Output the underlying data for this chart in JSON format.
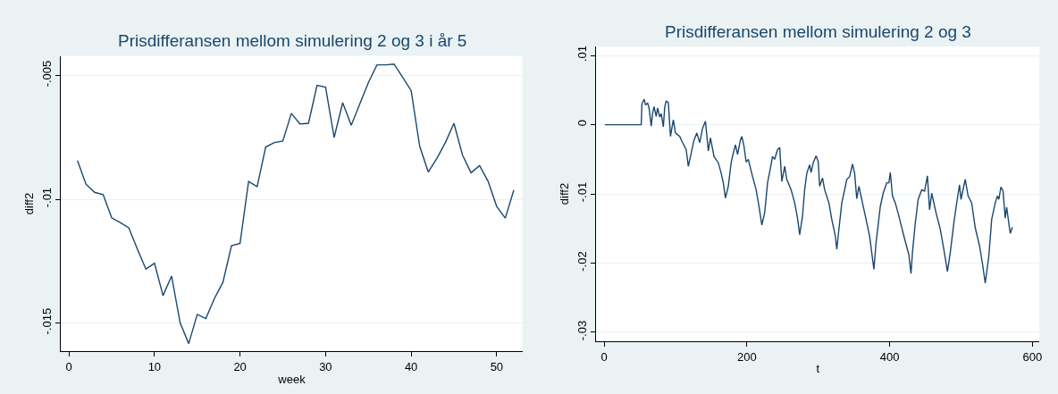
{
  "chart_data": [
    {
      "type": "line",
      "title": "Prisdifferansen mellom simulering 2 og 3 i år 5",
      "xlabel": "week",
      "ylabel": "diff2",
      "color": "#1a476f",
      "marker": "none",
      "grid": "y",
      "x": [
        1,
        2,
        3,
        4,
        5,
        6,
        7,
        8,
        9,
        10,
        11,
        12,
        13,
        14,
        15,
        16,
        17,
        18,
        19,
        20,
        21,
        22,
        23,
        24,
        25,
        26,
        27,
        28,
        29,
        30,
        31,
        32,
        33,
        34,
        35,
        36,
        37,
        38,
        39,
        40,
        41,
        42,
        43,
        44,
        45,
        46,
        47,
        48,
        49,
        50,
        51,
        52
      ],
      "values": [
        -0.00844,
        -0.00939,
        -0.00972,
        -0.00981,
        -0.01075,
        -0.01094,
        -0.01115,
        -0.01201,
        -0.01282,
        -0.01258,
        -0.01389,
        -0.0131,
        -0.01499,
        -0.01583,
        -0.01465,
        -0.01482,
        -0.01401,
        -0.01335,
        -0.01188,
        -0.01178,
        -0.00928,
        -0.00949,
        -0.00789,
        -0.00771,
        -0.00765,
        -0.00653,
        -0.00696,
        -0.00693,
        -0.0054,
        -0.00547,
        -0.0075,
        -0.0061,
        -0.00701,
        -0.00615,
        -0.00529,
        -0.00457,
        -0.00457,
        -0.00454,
        -0.00507,
        -0.00561,
        -0.00786,
        -0.0089,
        -0.00835,
        -0.00771,
        -0.00693,
        -0.00821,
        -0.00893,
        -0.00864,
        -0.00928,
        -0.01029,
        -0.01076,
        -0.00963
      ],
      "xlim": [
        -0.9,
        53
      ],
      "ylim": [
        -0.01615,
        -0.00421
      ],
      "xticks": [
        0,
        10,
        20,
        30,
        40,
        50
      ],
      "yticks": [
        {
          "value": -0.015,
          "label": "-.015"
        },
        {
          "value": -0.01,
          "label": "-.01"
        },
        {
          "value": -0.005,
          "label": "-.005"
        }
      ]
    },
    {
      "type": "line",
      "title": "Prisdifferansen mellom simulering 2 og 3",
      "xlabel": "t",
      "ylabel": "diff2",
      "color": "#1a476f",
      "marker": "none",
      "grid": "y",
      "x": [
        1,
        52,
        53,
        56,
        58,
        61,
        63,
        66,
        68,
        70,
        73,
        75,
        78,
        80,
        83,
        85,
        87,
        90,
        93,
        97,
        100,
        106,
        110,
        115,
        118,
        121,
        126,
        130,
        134,
        138,
        142,
        146,
        149,
        154,
        160,
        164,
        167,
        170,
        174,
        178,
        181,
        184,
        187,
        191,
        193,
        196,
        199,
        202,
        208,
        213,
        217,
        221,
        225,
        229,
        233,
        236,
        239,
        243,
        246,
        249,
        253,
        256,
        262,
        267,
        271,
        274,
        278,
        281,
        284,
        288,
        290,
        293,
        297,
        300,
        302,
        306,
        309,
        315,
        319,
        324,
        326,
        329,
        333,
        337,
        340,
        344,
        348,
        351,
        354,
        357,
        362,
        366,
        372,
        375,
        378,
        381,
        387,
        391,
        396,
        399,
        401,
        404,
        408,
        413,
        420,
        427,
        430,
        432,
        436,
        440,
        445,
        449,
        453,
        456,
        459,
        465,
        471,
        476,
        481,
        485,
        490,
        494,
        498,
        500,
        506,
        510,
        515,
        520,
        526,
        530,
        534,
        539,
        543,
        548,
        551,
        553,
        556,
        559,
        562,
        564,
        567,
        569,
        572
      ],
      "values": [
        0,
        0,
        0.003,
        0.0037,
        0.0029,
        0.0031,
        0.0024,
        -0.0002,
        0.0017,
        0.0026,
        0.0012,
        0.0024,
        0.0011,
        0.0016,
        -0.0003,
        0.0026,
        0.0034,
        0.0032,
        -0.0017,
        0.0007,
        -0.0012,
        -0.0017,
        -0.0026,
        -0.0036,
        -0.006,
        -0.0046,
        -0.0022,
        -0.0012,
        -0.0026,
        -0.0005,
        0.0005,
        -0.0038,
        -0.0019,
        -0.0046,
        -0.0055,
        -0.007,
        -0.0084,
        -0.0106,
        -0.0089,
        -0.0055,
        -0.0041,
        -0.0029,
        -0.0043,
        -0.0022,
        -0.0017,
        -0.0031,
        -0.0054,
        -0.005,
        -0.0075,
        -0.0094,
        -0.0118,
        -0.0145,
        -0.0127,
        -0.0084,
        -0.0063,
        -0.0046,
        -0.005,
        -0.0036,
        -0.0033,
        -0.0082,
        -0.006,
        -0.0079,
        -0.0094,
        -0.0113,
        -0.0135,
        -0.0159,
        -0.0132,
        -0.0094,
        -0.007,
        -0.0058,
        -0.0069,
        -0.0055,
        -0.0045,
        -0.0053,
        -0.0089,
        -0.0077,
        -0.0094,
        -0.0113,
        -0.0137,
        -0.0161,
        -0.018,
        -0.0151,
        -0.0113,
        -0.0094,
        -0.0079,
        -0.0075,
        -0.0057,
        -0.007,
        -0.0107,
        -0.0089,
        -0.0113,
        -0.0132,
        -0.0161,
        -0.0185,
        -0.0209,
        -0.0171,
        -0.0118,
        -0.0099,
        -0.0084,
        -0.0084,
        -0.0069,
        -0.0103,
        -0.0113,
        -0.0132,
        -0.0161,
        -0.0188,
        -0.0215,
        -0.0185,
        -0.0142,
        -0.0108,
        -0.0094,
        -0.0096,
        -0.0074,
        -0.0123,
        -0.0099,
        -0.0127,
        -0.0151,
        -0.018,
        -0.0212,
        -0.0185,
        -0.0142,
        -0.0113,
        -0.0087,
        -0.0108,
        -0.0079,
        -0.0103,
        -0.0113,
        -0.0149,
        -0.0175,
        -0.02,
        -0.0229,
        -0.019,
        -0.0137,
        -0.0113,
        -0.0103,
        -0.0108,
        -0.009,
        -0.0096,
        -0.0135,
        -0.0119,
        -0.0142,
        -0.0157,
        -0.0148
      ],
      "xlim": [
        -11,
        610
      ],
      "ylim": [
        -0.0313,
        0.0113
      ],
      "xticks": [
        0,
        200,
        400,
        600
      ],
      "yticks": [
        {
          "value": -0.03,
          "label": "-.03"
        },
        {
          "value": -0.02,
          "label": "-.02"
        },
        {
          "value": -0.01,
          "label": "-.01"
        },
        0,
        {
          "value": 0.01,
          "label": ".01"
        }
      ]
    }
  ]
}
